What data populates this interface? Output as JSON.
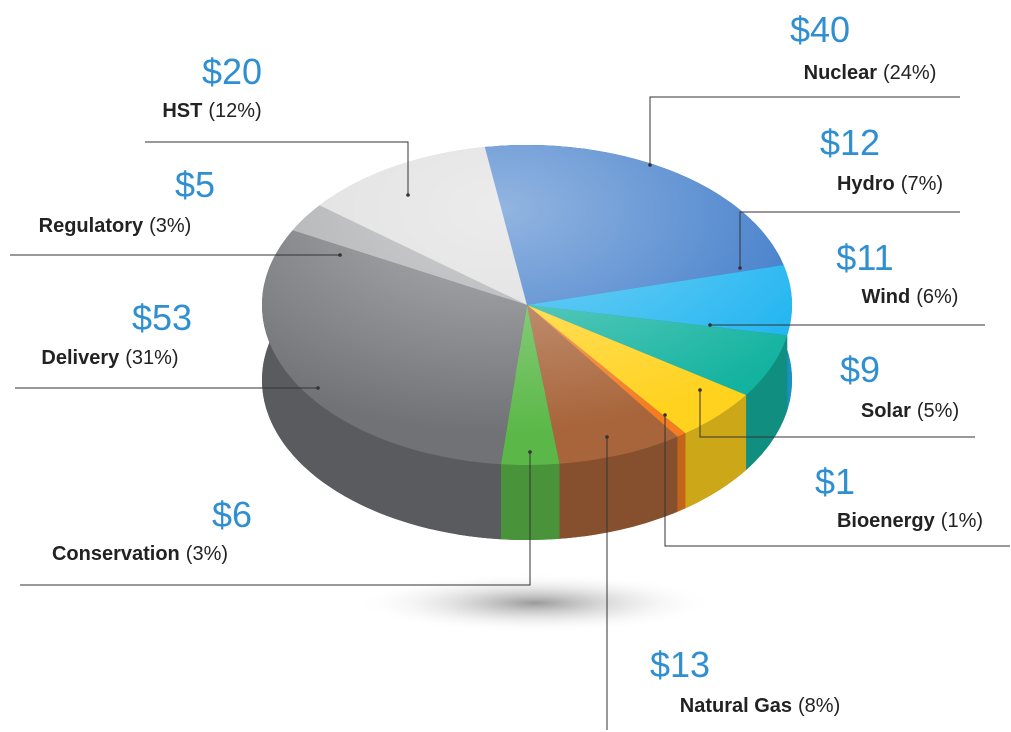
{
  "chart_data": {
    "type": "pie",
    "categories": [
      "Nuclear",
      "Hydro",
      "Wind",
      "Solar",
      "Bioenergy",
      "Natural Gas",
      "Conservation",
      "Delivery",
      "Regulatory",
      "HST"
    ],
    "values": [
      40,
      12,
      11,
      9,
      1,
      13,
      6,
      53,
      5,
      20
    ],
    "value_labels": [
      "$40",
      "$12",
      "$11",
      "$9",
      "$1",
      "$13",
      "$6",
      "$53",
      "$5",
      "$20"
    ],
    "percents": [
      24,
      7,
      6,
      5,
      1,
      8,
      3,
      31,
      3,
      12
    ],
    "percent_labels": [
      "(24%)",
      "(7%)",
      "(6%)",
      "(5%)",
      "(1%)",
      "(8%)",
      "(3%)",
      "(31%)",
      "(3%)",
      "(12%)"
    ],
    "colors": [
      "#3a78c8",
      "#1eb4f0",
      "#14b3a0",
      "#ffd21e",
      "#f57c20",
      "#a8643a",
      "#5bb848",
      "#707276",
      "#a9aaad",
      "#dcdcdc"
    ]
  }
}
